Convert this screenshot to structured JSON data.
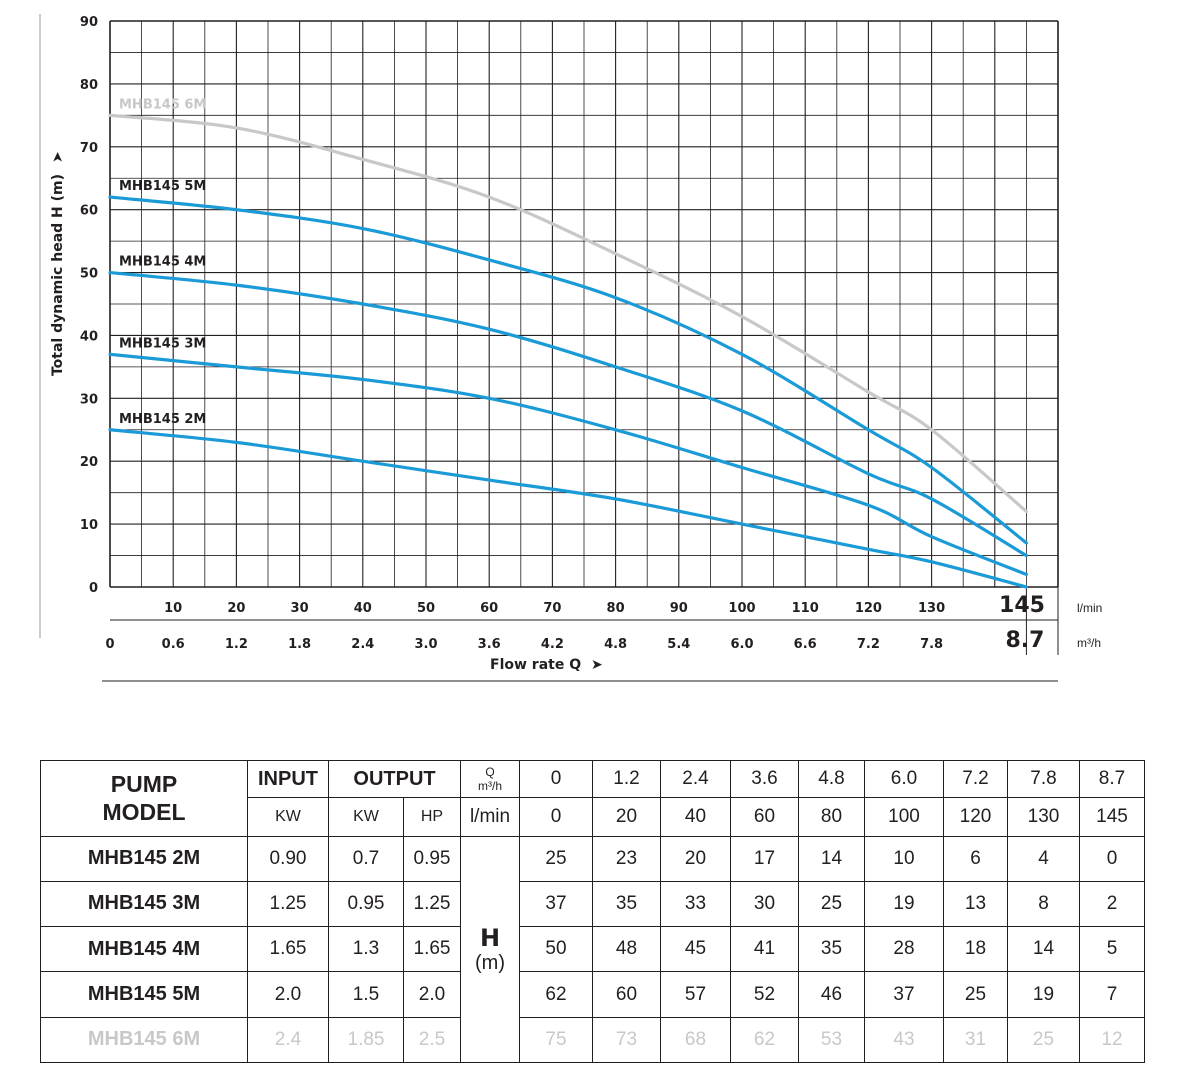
{
  "chart_data": {
    "type": "line",
    "ylabel": "Total dynamic head H (m)",
    "xlabel": "Flow rate Q",
    "ylim": [
      0,
      90
    ],
    "y_ticks": [
      0,
      10,
      20,
      30,
      40,
      50,
      60,
      70,
      80,
      90
    ],
    "x_lmin_ticks": [
      "10",
      "20",
      "30",
      "40",
      "50",
      "60",
      "70",
      "80",
      "90",
      "100",
      "110",
      "120",
      "130"
    ],
    "x_lmin_tick_values": [
      10,
      20,
      30,
      40,
      50,
      60,
      70,
      80,
      90,
      100,
      110,
      120,
      130
    ],
    "x_lmin_end": "145",
    "x_lmin_unit": "l/min",
    "x_m3h_ticks": [
      "0",
      "0.6",
      "1.2",
      "1.8",
      "2.4",
      "3.0",
      "3.6",
      "4.2",
      "4.8",
      "5.4",
      "6.0",
      "6.6",
      "7.2",
      "7.8"
    ],
    "x_m3h_tick_values": [
      0,
      10,
      20,
      30,
      40,
      50,
      60,
      70,
      80,
      90,
      100,
      110,
      120,
      130
    ],
    "x_m3h_end": "8.7",
    "x_m3h_unit": "m³/h",
    "xlim_lmin": [
      0,
      150
    ],
    "x": [
      0,
      20,
      40,
      60,
      80,
      100,
      120,
      130,
      145
    ],
    "series": [
      {
        "name": "MHB145 6M",
        "color": "#c8c8c8",
        "values": [
          75,
          73,
          68,
          62,
          53,
          43,
          31,
          25,
          12
        ]
      },
      {
        "name": "MHB145 5M",
        "color": "#1a9ad6",
        "values": [
          62,
          60,
          57,
          52,
          46,
          37,
          25,
          19,
          7
        ]
      },
      {
        "name": "MHB145 4M",
        "color": "#1a9ad6",
        "values": [
          50,
          48,
          45,
          41,
          35,
          28,
          18,
          14,
          5
        ]
      },
      {
        "name": "MHB145 3M",
        "color": "#1a9ad6",
        "values": [
          37,
          35,
          33,
          30,
          25,
          19,
          13,
          8,
          2
        ]
      },
      {
        "name": "MHB145 2M",
        "color": "#1a9ad6",
        "values": [
          25,
          23,
          20,
          17,
          14,
          10,
          6,
          4,
          0
        ]
      }
    ]
  },
  "table": {
    "model_header_line1": "PUMP",
    "model_header_line2": "MODEL",
    "input_header": "INPUT",
    "output_header": "OUTPUT",
    "q_label": "Q",
    "q_unit": "m³/h",
    "q_values": [
      "0",
      "1.2",
      "2.4",
      "3.6",
      "4.8",
      "6.0",
      "7.2",
      "7.8",
      "8.7"
    ],
    "input_unit": "KW",
    "output_unit_kw": "KW",
    "output_unit_hp": "HP",
    "lmin_unit": "l/min",
    "lmin_values": [
      "0",
      "20",
      "40",
      "60",
      "80",
      "100",
      "120",
      "130",
      "145"
    ],
    "h_label": "H",
    "h_unit": "(m)",
    "rows": [
      {
        "model": "MHB145 2M",
        "input_kw": "0.90",
        "output_kw": "0.7",
        "output_hp": "0.95",
        "h": [
          "25",
          "23",
          "20",
          "17",
          "14",
          "10",
          "6",
          "4",
          "0"
        ]
      },
      {
        "model": "MHB145 3M",
        "input_kw": "1.25",
        "output_kw": "0.95",
        "output_hp": "1.25",
        "h": [
          "37",
          "35",
          "33",
          "30",
          "25",
          "19",
          "13",
          "8",
          "2"
        ]
      },
      {
        "model": "MHB145 4M",
        "input_kw": "1.65",
        "output_kw": "1.3",
        "output_hp": "1.65",
        "h": [
          "50",
          "48",
          "45",
          "41",
          "35",
          "28",
          "18",
          "14",
          "5"
        ]
      },
      {
        "model": "MHB145 5M",
        "input_kw": "2.0",
        "output_kw": "1.5",
        "output_hp": "2.0",
        "h": [
          "62",
          "60",
          "57",
          "52",
          "46",
          "37",
          "25",
          "19",
          "7"
        ]
      },
      {
        "model": "MHB145 6M",
        "input_kw": "2.4",
        "output_kw": "1.85",
        "output_hp": "2.5",
        "h": [
          "75",
          "73",
          "68",
          "62",
          "53",
          "43",
          "31",
          "25",
          "12"
        ]
      }
    ]
  }
}
